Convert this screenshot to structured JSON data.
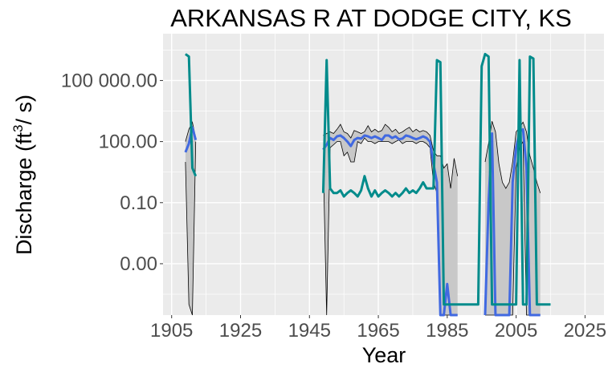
{
  "chart_data": {
    "type": "line",
    "title": "ARKANSAS R AT DODGE CITY, KS",
    "xlabel": "Year",
    "ylabel": {
      "prefix": "Discharge (ft",
      "sup": "3",
      "suffix": "/ s)"
    },
    "x_ticks": [
      1905,
      1925,
      1945,
      1965,
      1985,
      2005,
      2025
    ],
    "y_ticks": [
      {
        "value": 0.0001,
        "label": "0.00"
      },
      {
        "value": 0.1,
        "label": "0.10"
      },
      {
        "value": 100,
        "label": "100.00"
      },
      {
        "value": 100000,
        "label": "100 000.00"
      }
    ],
    "y_scale": "log10",
    "xlim": [
      1902.5,
      2030.5
    ],
    "ylim": [
      3e-07,
      20000000
    ],
    "grid": true,
    "colors": {
      "panel": "#ebebeb",
      "grid": "#ffffff",
      "band_fill": "#c8c8c8",
      "band_line": "#000000",
      "median": "#4169e1",
      "extreme": "#008b8b"
    },
    "band": {
      "x": [
        1909,
        1910,
        1911,
        1912,
        1949,
        1950,
        1951,
        1952,
        1953,
        1954,
        1955,
        1956,
        1957,
        1958,
        1959,
        1960,
        1961,
        1962,
        1963,
        1964,
        1965,
        1966,
        1967,
        1968,
        1969,
        1970,
        1971,
        1972,
        1973,
        1974,
        1975,
        1976,
        1977,
        1978,
        1979,
        1980,
        1981,
        1982,
        1983,
        1984,
        1985,
        1986,
        1987,
        1988,
        1989,
        1990,
        1991,
        1992,
        1993,
        1994,
        1995,
        1996,
        1997,
        1998,
        1999,
        2000,
        2001,
        2002,
        2003,
        2004,
        2005,
        2006,
        2007,
        2008,
        2009,
        2010,
        2011,
        2012
      ],
      "upper": [
        100,
        400,
        900,
        150,
        200,
        250,
        300,
        250,
        400,
        700,
        300,
        250,
        150,
        350,
        300,
        250,
        300,
        600,
        300,
        400,
        300,
        350,
        700,
        500,
        300,
        400,
        250,
        300,
        400,
        500,
        300,
        400,
        300,
        350,
        300,
        200,
        35,
        20,
        20,
        5,
        8,
        0.5,
        15,
        2,
        null,
        null,
        null,
        null,
        null,
        null,
        null,
        10,
        80,
        1000,
        300,
        8,
        1,
        0.5,
        1,
        10,
        300,
        500,
        900,
        300,
        20,
        5,
        1,
        0.3
      ],
      "lower": [
        10,
        1e-06,
        1e-07,
        100,
        15,
        1e-07,
        50,
        70,
        100,
        100,
        20,
        30,
        10,
        10,
        100,
        80,
        150,
        100,
        100,
        80,
        100,
        100,
        100,
        100,
        80,
        100,
        120,
        80,
        100,
        100,
        100,
        80,
        100,
        100,
        80,
        50,
        1,
        0.3,
        1e-07,
        1e-07,
        1e-07,
        1e-07,
        1e-07,
        1e-07,
        null,
        null,
        null,
        null,
        null,
        null,
        null,
        1e-07,
        1e-07,
        1e-07,
        1e-07,
        1e-07,
        1e-07,
        1e-07,
        1e-07,
        1e-07,
        5,
        50,
        100,
        1e-07,
        1e-07,
        1e-07,
        1e-07,
        1e-07
      ]
    },
    "series": [
      {
        "role": "median",
        "x": [
          1909,
          1910,
          1911,
          1912,
          1949,
          1950,
          1951,
          1952,
          1953,
          1954,
          1955,
          1956,
          1957,
          1958,
          1959,
          1960,
          1961,
          1962,
          1963,
          1964,
          1965,
          1966,
          1967,
          1968,
          1969,
          1970,
          1971,
          1972,
          1973,
          1974,
          1975,
          1976,
          1977,
          1978,
          1979,
          1980,
          1981,
          1982,
          1983,
          1984,
          1985,
          1986,
          1987,
          1988,
          1989,
          1990,
          1991,
          1992,
          1993,
          1994,
          1995,
          1996,
          1997,
          1998,
          1999,
          2000,
          2001,
          2002,
          2003,
          2004,
          2005,
          2006,
          2007,
          2008,
          2009,
          2010,
          2011,
          2012
        ],
        "y": [
          30,
          80,
          500,
          120,
          40,
          70,
          150,
          120,
          180,
          200,
          150,
          100,
          60,
          120,
          150,
          140,
          200,
          180,
          150,
          180,
          150,
          120,
          200,
          200,
          150,
          180,
          130,
          140,
          200,
          180,
          150,
          130,
          150,
          180,
          150,
          100,
          8,
          1,
          1e-07,
          1e-07,
          1e-05,
          1e-07,
          1e-07,
          1e-07,
          null,
          null,
          null,
          null,
          null,
          null,
          null,
          1e-07,
          0.1,
          250,
          1e-07,
          1e-07,
          1e-07,
          1e-07,
          1e-07,
          1,
          50,
          300,
          400,
          5,
          1e-07,
          1e-07,
          1e-07,
          1e-07
        ]
      },
      {
        "role": "extreme",
        "x": [
          1909,
          1910,
          1911,
          1912,
          1949,
          1950,
          1951,
          1952,
          1953,
          1954,
          1955,
          1956,
          1957,
          1958,
          1959,
          1960,
          1961,
          1962,
          1963,
          1964,
          1965,
          1966,
          1967,
          1968,
          1969,
          1970,
          1971,
          1972,
          1973,
          1974,
          1975,
          1976,
          1977,
          1978,
          1979,
          1980,
          1981,
          1982,
          1983,
          1984,
          1985,
          1986,
          1987,
          1988,
          1989,
          1990,
          1991,
          1992,
          1993,
          1994,
          1995,
          1996,
          1997,
          1998,
          1999,
          2000,
          2001,
          2002,
          2003,
          2004,
          2005,
          2006,
          2007,
          2008,
          2009,
          2010,
          2011,
          2012,
          2013,
          2014,
          2015
        ],
        "y": [
          2000000,
          1500000,
          5,
          2,
          0.3,
          1000000,
          0.5,
          0.3,
          0.3,
          0.4,
          0.2,
          0.3,
          0.4,
          0.3,
          0.2,
          0.4,
          2,
          0.5,
          0.2,
          0.4,
          0.2,
          0.3,
          0.4,
          0.3,
          0.2,
          0.3,
          0.2,
          0.3,
          0.5,
          0.3,
          0.4,
          0.3,
          0.5,
          1,
          0.5,
          0.5,
          0.5,
          1000000,
          800000,
          1e-06,
          1e-06,
          1e-06,
          1e-06,
          1e-06,
          1e-06,
          1e-06,
          1e-06,
          1e-06,
          1e-06,
          1e-06,
          500000,
          2000000,
          1500000,
          1e-06,
          1e-06,
          1e-06,
          1e-06,
          1e-06,
          1e-06,
          1e-06,
          1e-06,
          1000000,
          1e-06,
          1e-06,
          1500000,
          1200000,
          1e-06,
          1e-06,
          1e-06,
          1e-06,
          1e-06
        ]
      }
    ]
  }
}
